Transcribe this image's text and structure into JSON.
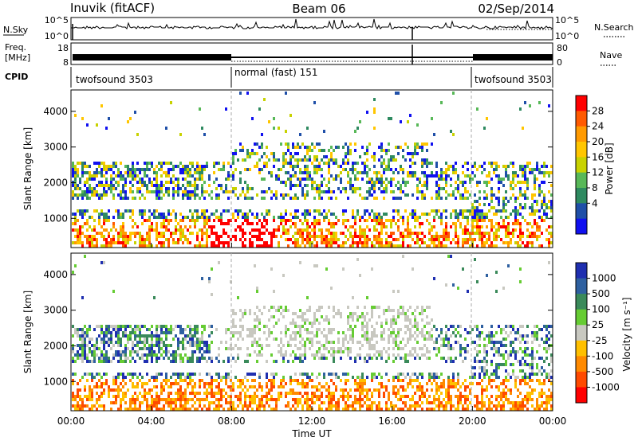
{
  "header": {
    "station": "Inuvik (fitACF)",
    "beam": "Beam 06",
    "date": "02/Sep/2014"
  },
  "top_panels": {
    "nsky_label": "N.Sky",
    "nsky_ticks": [
      "10^5",
      "10^0"
    ],
    "nsearch_label": "N.Search",
    "nsearch_ticks": [
      "10^5",
      "10^0"
    ],
    "freq_label_1": "Freq.",
    "freq_label_2": "[MHz]",
    "freq_ticks": [
      "18",
      "8"
    ],
    "nave_label": "Nave",
    "nave_ticks": [
      "80",
      "0"
    ],
    "cpid_label": "CPID",
    "cpid_segments": [
      "twofsound 3503",
      "normal (fast) 151",
      "twofsound 3503"
    ]
  },
  "chart_data": [
    {
      "type": "heatmap",
      "name": "power-panel",
      "ylabel": "Slant Range [km]",
      "yticks": [
        "4000",
        "3000",
        "2000",
        "1000"
      ],
      "xticks": [
        "00:00",
        "04:00",
        "08:00",
        "12:00",
        "16:00",
        "20:00",
        "00:00"
      ],
      "colorbar_label": "Power [dB]",
      "colorbar_ticks": [
        "28",
        "24",
        "20",
        "16",
        "12",
        "8",
        "4"
      ],
      "colors": [
        "#ff0000",
        "#ff5a00",
        "#ff9a00",
        "#ffc600",
        "#c8d200",
        "#58b858",
        "#2e8a60",
        "#1f4fa8",
        "#1010f0"
      ]
    },
    {
      "type": "heatmap",
      "name": "velocity-panel",
      "ylabel": "Slant Range [km]",
      "yticks": [
        "4000",
        "3000",
        "2000",
        "1000"
      ],
      "xticks": [
        "00:00",
        "04:00",
        "08:00",
        "12:00",
        "16:00",
        "20:00",
        "00:00"
      ],
      "colorbar_label": "Velocity [m s⁻¹]",
      "colorbar_ticks": [
        "1000",
        "500",
        "100",
        "25",
        "-25",
        "-100",
        "-500",
        "-1000"
      ],
      "colors": [
        "#1f2fb0",
        "#2e60a0",
        "#3a8a5a",
        "#66cc33",
        "#c8c8c0",
        "#ffc000",
        "#ff8a00",
        "#ff4a00",
        "#ff0000"
      ]
    }
  ],
  "xaxis_label": "Time UT"
}
